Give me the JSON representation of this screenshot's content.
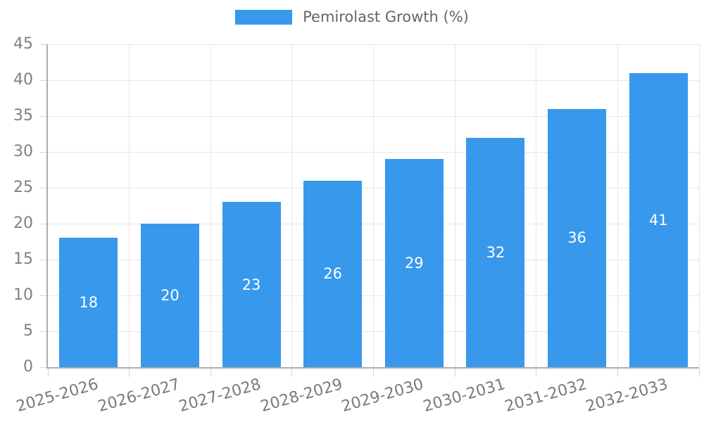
{
  "legend": {
    "label": "Pemirolast Growth (%)"
  },
  "colors": {
    "bar": "#3898ec",
    "grid": "#e6e6e6",
    "tick": "#d4d4d4",
    "axis": "#adadad",
    "ytext": "#808080",
    "xtext": "#7a7a7a",
    "legendtext": "#666666",
    "valuetext": "#ffffff",
    "bg": "#ffffff"
  },
  "chart_data": {
    "type": "bar",
    "title": "",
    "legend_entries": [
      "Pemirolast Growth (%)"
    ],
    "legend_position": "top-center",
    "categories": [
      "2025-2026",
      "2026-2027",
      "2027-2028",
      "2028-2029",
      "2029-2030",
      "2030-2031",
      "2031-2032",
      "2032-2033"
    ],
    "values": [
      18,
      20,
      23,
      26,
      29,
      32,
      36,
      41
    ],
    "value_labels": "inside-center",
    "xlabel": "",
    "ylabel": "",
    "ylim": [
      0,
      45
    ],
    "ytick_step": 5,
    "yticks": [
      0,
      5,
      10,
      15,
      20,
      25,
      30,
      35,
      40,
      45
    ],
    "grid": true,
    "x_label_rotation_deg": -16
  }
}
